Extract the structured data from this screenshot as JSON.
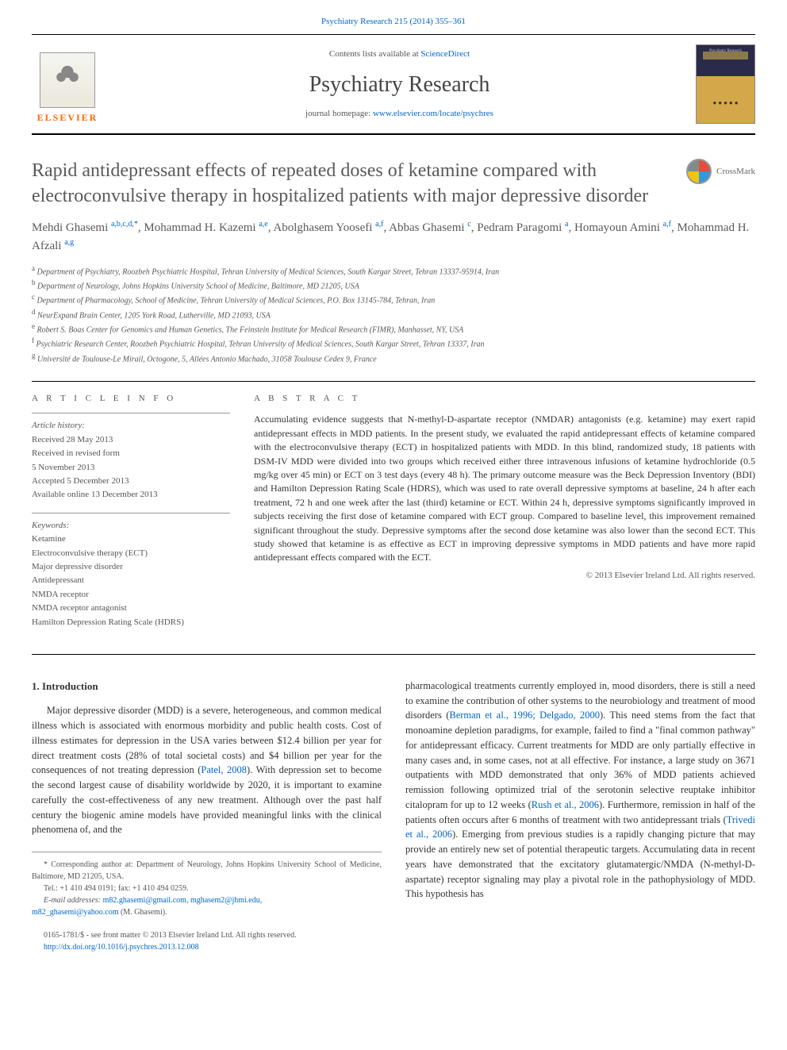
{
  "top_link": {
    "prefix": "",
    "journal_ref": "Psychiatry Research 215 (2014) 355–361"
  },
  "header": {
    "contents_text": "Contents lists available at ",
    "contents_link": "ScienceDirect",
    "journal_name": "Psychiatry Research",
    "homepage_label": "journal homepage: ",
    "homepage_url": "www.elsevier.com/locate/psychres",
    "publisher_name": "ELSEVIER",
    "cover_label": "Psychiatry Research"
  },
  "article": {
    "title": "Rapid antidepressant effects of repeated doses of ketamine compared with electroconvulsive therapy in hospitalized patients with major depressive disorder",
    "crossmark_label": "CrossMark",
    "authors_html": "Mehdi Ghasemi <sup>a,b,c,d,*</sup>, Mohammad H. Kazemi <sup>a,e</sup>, Abolghasem Yoosefi <sup>a,f</sup>, Abbas Ghasemi <sup>c</sup>, Pedram Paragomi <sup>a</sup>, Homayoun Amini <sup>a,f</sup>, Mohammad H. Afzali <sup>a,g</sup>",
    "affiliations": [
      "a Department of Psychiatry, Roozbeh Psychiatric Hospital, Tehran University of Medical Sciences, South Kargar Street, Tehran 13337-95914, Iran",
      "b Department of Neurology, Johns Hopkins University School of Medicine, Baltimore, MD 21205, USA",
      "c Department of Pharmacology, School of Medicine, Tehran University of Medical Sciences, P.O. Box 13145-784, Tehran, Iran",
      "d NeurExpand Brain Center, 1205 York Road, Lutherville, MD 21093, USA",
      "e Robert S. Boas Center for Genomics and Human Genetics, The Feinstein Institute for Medical Research (FIMR), Manhasset, NY, USA",
      "f Psychiatric Research Center, Roozbeh Psychiatric Hospital, Tehran University of Medical Sciences, South Kargar Street, Tehran 13337, Iran",
      "g Université de Toulouse-Le Mirail, Octogone, 5, Allées Antonio Machado, 31058 Toulouse Cedex 9, France"
    ]
  },
  "article_info": {
    "label": "A R T I C L E   I N F O",
    "history_label": "Article history:",
    "history": [
      "Received 28 May 2013",
      "Received in revised form",
      "5 November 2013",
      "Accepted 5 December 2013",
      "Available online 13 December 2013"
    ],
    "keywords_label": "Keywords:",
    "keywords": [
      "Ketamine",
      "Electroconvulsive therapy (ECT)",
      "Major depressive disorder",
      "Antidepressant",
      "NMDA receptor",
      "NMDA receptor antagonist",
      "Hamilton Depression Rating Scale (HDRS)"
    ]
  },
  "abstract": {
    "label": "A B S T R A C T",
    "text": "Accumulating evidence suggests that N-methyl-D-aspartate receptor (NMDAR) antagonists (e.g. ketamine) may exert rapid antidepressant effects in MDD patients. In the present study, we evaluated the rapid antidepressant effects of ketamine compared with the electroconvulsive therapy (ECT) in hospitalized patients with MDD. In this blind, randomized study, 18 patients with DSM-IV MDD were divided into two groups which received either three intravenous infusions of ketamine hydrochloride (0.5 mg/kg over 45 min) or ECT on 3 test days (every 48 h). The primary outcome measure was the Beck Depression Inventory (BDI) and Hamilton Depression Rating Scale (HDRS), which was used to rate overall depressive symptoms at baseline, 24 h after each treatment, 72 h and one week after the last (third) ketamine or ECT. Within 24 h, depressive symptoms significantly improved in subjects receiving the first dose of ketamine compared with ECT group. Compared to baseline level, this improvement remained significant throughout the study. Depressive symptoms after the second dose ketamine was also lower than the second ECT. This study showed that ketamine is as effective as ECT in improving depressive symptoms in MDD patients and have more rapid antidepressant effects compared with the ECT.",
    "copyright": "© 2013 Elsevier Ireland Ltd. All rights reserved."
  },
  "body": {
    "section_heading": "1.  Introduction",
    "col1_p1_a": "Major depressive disorder (MDD) is a severe, heterogeneous, and common medical illness which is associated with enormous morbidity and public health costs. Cost of illness estimates for depression in the USA varies between $12.4 billion per year for direct treatment costs (28% of total societal costs) and $4 billion per year for the consequences of not treating depression (",
    "col1_link1": "Patel, 2008",
    "col1_p1_b": "). With depression set to become the second largest cause of disability worldwide by 2020, it is important to examine carefully the cost-effectiveness of any new treatment. Although over the past half century the biogenic amine models have provided meaningful links with the clinical phenomena of, and the",
    "col2_p1_a": "pharmacological treatments currently employed in, mood disorders, there is still a need to examine the contribution of other systems to the neurobiology and treatment of mood disorders (",
    "col2_link1": "Berman et al., 1996; Delgado, 2000",
    "col2_p1_b": "). This need stems from the fact that monoamine depletion paradigms, for example, failed to find a \"final common pathway\" for antidepressant efficacy. Current treatments for MDD are only partially effective in many cases and, in some cases, not at all effective. For instance, a large study on 3671 outpatients with MDD demonstrated that only 36% of MDD patients achieved remission following optimized trial of the serotonin selective reuptake inhibitor citalopram for up to 12 weeks (",
    "col2_link2": "Rush et al., 2006",
    "col2_p1_c": "). Furthermore, remission in half of the patients often occurs after 6 months of treatment with two antidepressant trials (",
    "col2_link3": "Trivedi et al., 2006",
    "col2_p1_d": "). Emerging from previous studies is a rapidly changing picture that may provide an entirely new set of potential therapeutic targets. Accumulating data in recent years have demonstrated that the excitatory glutamatergic/NMDA (N-methyl-D-aspartate) receptor signaling may play a pivotal role in the pathophysiology of MDD. This hypothesis has"
  },
  "footnotes": {
    "corresponding": "* Corresponding author at: Department of Neurology, Johns Hopkins University School of Medicine, Baltimore, MD 21205, USA.",
    "tel": "Tel.: +1 410 494 0191; fax: +1 410 494 0259.",
    "email_label": "E-mail addresses: ",
    "email1": "m82.ghasemi@gmail.com",
    "email_sep1": ", ",
    "email2": "mghasem2@jhmi.edu",
    "email_sep2": ",",
    "email3": "m82_ghasemi@yahoo.com",
    "email_author": " (M. Ghasemi)."
  },
  "bottom": {
    "issn": "0165-1781/$ - see front matter © 2013 Elsevier Ireland Ltd. All rights reserved.",
    "doi": "http://dx.doi.org/10.1016/j.psychres.2013.12.008"
  },
  "colors": {
    "link": "#0066cc",
    "text": "#333333",
    "muted": "#555555",
    "title_gray": "#5a5a5a",
    "elsevier_orange": "#ff6600"
  }
}
